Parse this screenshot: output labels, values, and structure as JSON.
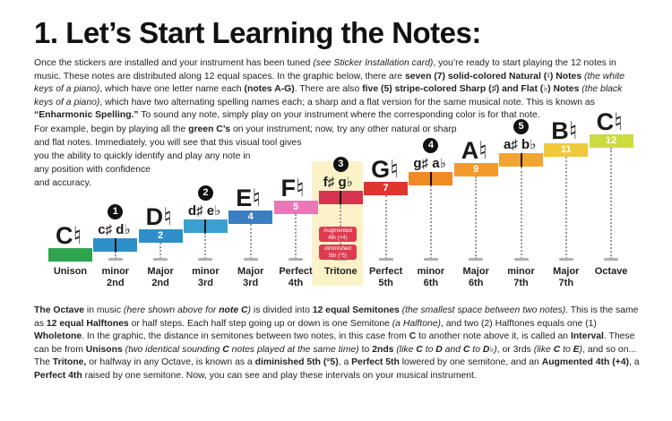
{
  "title": "1. Let’s Start Learning the Notes:",
  "intro": {
    "t1": "Once the stickers are installed and your instrument has been tuned ",
    "t2": "(see Sticker Installation card)",
    "t3": ", you’re ready to start playing the 12 notes in music. These notes are distributed along 12 equal spaces. In the graphic below, there are ",
    "t4": "seven (7) solid-colored Natural (♮) Notes",
    "t5": " ",
    "t6": "(the white keys of a piano)",
    "t7": ", which have one letter name each ",
    "t8": "(notes A-G)",
    "t9": ". There are also ",
    "t10": "five (5) stripe-colored Sharp (♯) and Flat (♭) Notes",
    "t11": " ",
    "t12": "(the black keys of a piano)",
    "t13": ", which have two alternating spelling names each; a sharp and a flat version for the same musical note. This is known as ",
    "t14": "“Enharmonic Spelling.”",
    "t15": " To sound any note, simply play on your instrument where the corresponding color is for that note."
  },
  "example": {
    "l1a": "For example, begin by playing all the ",
    "l1b": "green C’s",
    "l1c": " on your instrument; now, try any other natural or sharp",
    "l2": "and flat notes. Immediately, you will see that this visual tool gives",
    "l3": "you the ability to quickly identify and play any note in",
    "l4": "any position with confidence",
    "l5": "and accuracy."
  },
  "notes": [
    {
      "label": "C♮",
      "big": true
    },
    {
      "label": "c♯ d♭",
      "big": false
    },
    {
      "label": "D♮",
      "big": true
    },
    {
      "label": "d♯ e♭",
      "big": false
    },
    {
      "label": "E♮",
      "big": true
    },
    {
      "label": "F♮",
      "big": true
    },
    {
      "label": "f♯ g♭",
      "big": false
    },
    {
      "label": "G♮",
      "big": true
    },
    {
      "label": "g♯ a♭",
      "big": false
    },
    {
      "label": "A♮",
      "big": true
    },
    {
      "label": "a♯ b♭",
      "big": false
    },
    {
      "label": "B♮",
      "big": true
    },
    {
      "label": "C♮",
      "big": true
    }
  ],
  "semitones": [
    "",
    "1",
    "2",
    "3",
    "4",
    "5",
    "6",
    "7",
    "8",
    "9",
    "10",
    "11",
    "12"
  ],
  "stripe_circles": [
    "1",
    "2",
    "3",
    "4",
    "5"
  ],
  "colors": [
    "#2ea44f",
    "#2f8fc9",
    "#2f8fc9",
    "#39a0d0",
    "#3b7fc2",
    "#e979b6",
    "#d9344f",
    "#e0352d",
    "#f08a25",
    "#f39a2b",
    "#f2a531",
    "#f0c93a",
    "#cddb3e"
  ],
  "tritone_tags": {
    "aug1": "Augmented",
    "aug2": "4th (+4)",
    "dim1": "diminished",
    "dim2": "5th (°5)"
  },
  "intervals": [
    {
      "l1": "Unison",
      "l2": ""
    },
    {
      "l1": "minor",
      "l2": "2nd"
    },
    {
      "l1": "Major",
      "l2": "2nd"
    },
    {
      "l1": "minor",
      "l2": "3rd"
    },
    {
      "l1": "Major",
      "l2": "3rd"
    },
    {
      "l1": "Perfect",
      "l2": "4th"
    },
    {
      "l1": "Tritone",
      "l2": ""
    },
    {
      "l1": "Perfect",
      "l2": "5th"
    },
    {
      "l1": "minor",
      "l2": "6th"
    },
    {
      "l1": "Major",
      "l2": "6th"
    },
    {
      "l1": "minor",
      "l2": "7th"
    },
    {
      "l1": "Major",
      "l2": "7th"
    },
    {
      "l1": "Octave",
      "l2": ""
    }
  ],
  "octave": {
    "t1": "The Octave",
    "t2": " in music ",
    "t3": "(here shown above for ",
    "t4": "note C",
    "t5": ")",
    "t6": " is divided into ",
    "t7": "12 equal Semitones",
    "t8": " ",
    "t9": "(the smallest space between two notes)",
    "t10": ". This is the same as ",
    "t11": "12 equal Halftones",
    "t12": " or half steps. Each half step going up or down is one Semitone ",
    "t13": "(a Halftone)",
    "t14": ", and two (2) Halftones equals one (1) ",
    "t15": "Wholetone",
    "t16": ". In the graphic, the distance in semitones between two notes, in this case from ",
    "t17": "C",
    "t18": " to another note above it, is called an ",
    "t19": "Interval",
    "t20": ". These can be from ",
    "t21": "Unisons",
    "t22": " ",
    "t23": "(two identical sounding ",
    "t24": "C",
    "t25": " notes played at the same time)",
    "t26": " to ",
    "t27": "2nds",
    "t28": " ",
    "t29": "(like ",
    "t30": "C",
    "t31": " to ",
    "t32": "D",
    "t33": " and ",
    "t34": "C",
    "t35": " to ",
    "t36": "D♭",
    "t37": ")",
    "t38": ", or 3rds ",
    "t39": "(like ",
    "t40": "C",
    "t41": " to ",
    "t42": "E",
    "t43": ")",
    "t44": ", and so on... The ",
    "t45": "Tritone,",
    "t46": " or halfway in any Octave, is known as a ",
    "t47": "diminished 5th (°5)",
    "t48": ", a ",
    "t49": "Perfect 5th",
    "t50": " lowered by one semitone, and an ",
    "t51": "Augmented 4th (+4)",
    "t52": ", a ",
    "t53": "Perfect 4th",
    "t54": " raised by one semitone. Now, you can see and play these intervals on your musical instrument."
  }
}
